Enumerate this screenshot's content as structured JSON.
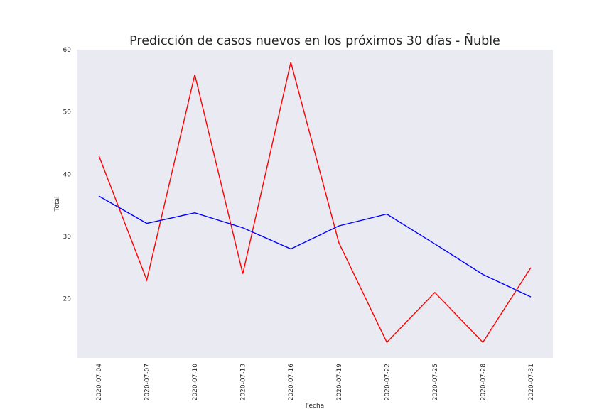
{
  "chart_data": {
    "type": "line",
    "title": "Predicción de casos nuevos en los próximos 30 días - Ñuble",
    "xlabel": "Fecha",
    "ylabel": "Total",
    "x": [
      "2020-07-04",
      "2020-07-07",
      "2020-07-10",
      "2020-07-13",
      "2020-07-16",
      "2020-07-19",
      "2020-07-22",
      "2020-07-25",
      "2020-07-28",
      "2020-07-31"
    ],
    "series": [
      {
        "color": "#ff0000",
        "values": [
          43,
          23,
          56,
          24,
          58,
          29,
          13,
          21,
          13,
          25
        ]
      },
      {
        "color": "#0000ff",
        "values": [
          36.5,
          32.1,
          33.8,
          31.4,
          28.0,
          31.7,
          33.6,
          28.8,
          23.9,
          20.3
        ]
      }
    ],
    "ylim": [
      10.5,
      60
    ],
    "yticks": [
      20,
      30,
      40,
      50,
      60
    ],
    "grid": false,
    "background": "#eaeaf2"
  }
}
